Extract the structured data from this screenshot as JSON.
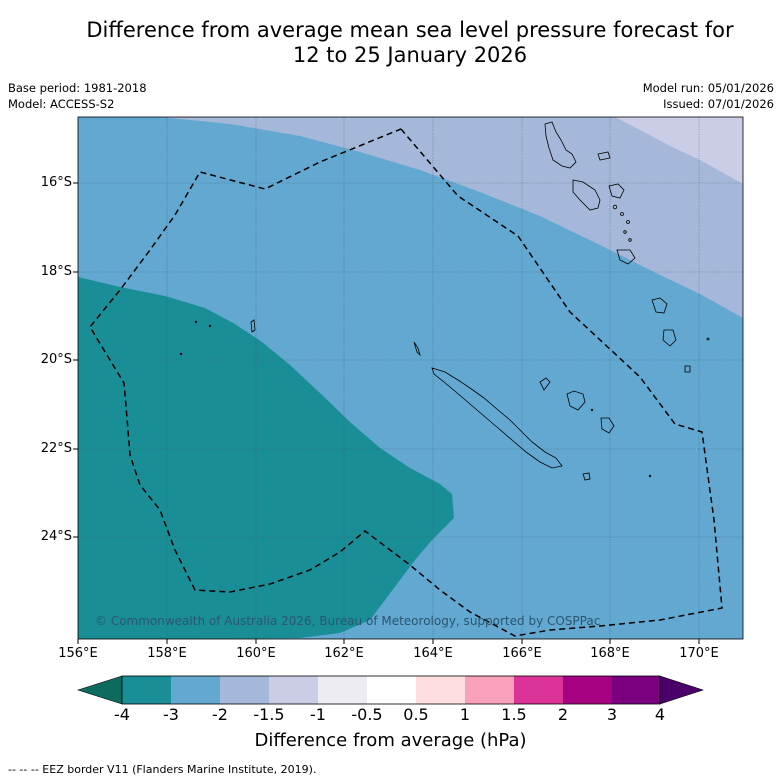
{
  "title_line1": "Difference from average mean sea level pressure forecast for",
  "title_line2": "12 to 25 January 2026",
  "base_period": "Base period: 1981-2018",
  "model": "Model: ACCESS-S2",
  "model_run": "Model run: 05/01/2026",
  "issued": "Issued: 07/01/2026",
  "map": {
    "lon_ticks": [
      "156°E",
      "158°E",
      "160°E",
      "162°E",
      "164°E",
      "166°E",
      "168°E",
      "170°E"
    ],
    "lat_ticks": [
      "16°S",
      "18°S",
      "20°S",
      "22°S",
      "24°S"
    ],
    "copyright": "© Commonwealth of Australia 2026, Bureau of Meteorology, supported by COSPPac"
  },
  "colorbar": {
    "title": "Difference from average (hPa)",
    "labels": [
      "-4",
      "-3",
      "-2",
      "-1.5",
      "-1",
      "-0.5",
      "0.5",
      "1",
      "1.5",
      "2",
      "3",
      "4"
    ],
    "colors": [
      "#1a8e96",
      "#62a8d0",
      "#a5b8d9",
      "#cbcde6",
      "#ececf2",
      "#ffffff",
      "#ffdede",
      "#f9a0bb",
      "#dc3399",
      "#a60180",
      "#7b0080"
    ],
    "under_color": "#0d6b5e",
    "over_color": "#4a0068"
  },
  "footnote": "-- -- -- EEZ border V11 (Flanders Marine Institute, 2019)."
}
